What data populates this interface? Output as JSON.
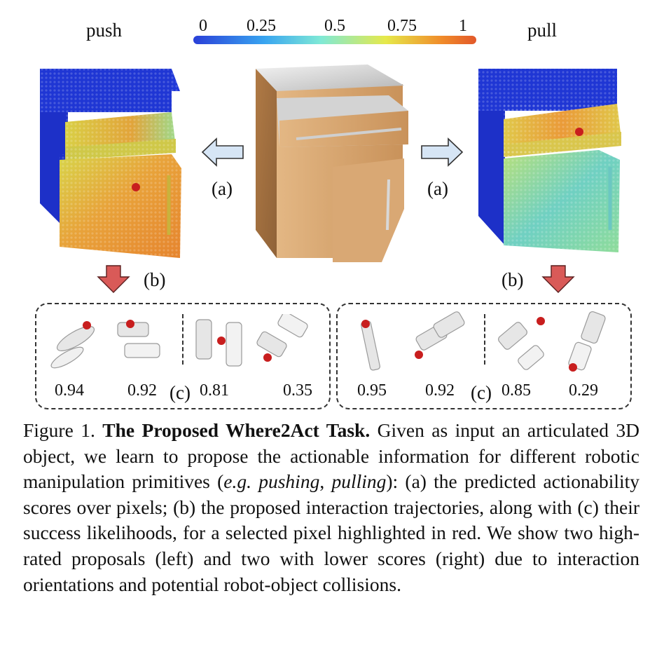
{
  "figure": {
    "panels": {
      "left_title": "push",
      "right_title": "pull"
    },
    "colorbar": {
      "ticks": [
        "0",
        "0.25",
        "0.5",
        "0.75",
        "1"
      ],
      "colors": [
        "#2a3fd8",
        "#38a4f0",
        "#7fe9d6",
        "#e6e94a",
        "#f08a2a",
        "#e2582a"
      ]
    },
    "labels": {
      "a_left": "(a)",
      "a_right": "(a)",
      "b_left": "(b)",
      "b_right": "(b)",
      "c_left": "(c)",
      "c_right": "(c)"
    },
    "left_scores": [
      "0.94",
      "0.92",
      "0.81",
      "0.35"
    ],
    "right_scores": [
      "0.95",
      "0.92",
      "0.85",
      "0.29"
    ],
    "colors": {
      "heat_blue": "#1d33d6",
      "heat_orange": "#e8862f",
      "heat_yellow": "#d8d74a",
      "arrow_light": "#cfe0f2",
      "arrow_red": "#d95a58",
      "contact_point": "#c81e1e",
      "wood": "#c9925a"
    }
  },
  "caption": {
    "prefix": "Figure 1. ",
    "title": "The Proposed Where2Act Task.",
    "text1": " Given as input an articulated 3D object, we learn to propose the actionable information for different robotic manipulation primitives (",
    "eg": "e.g.",
    "space": " ",
    "pushing": "pushing",
    "comma": ", ",
    "pulling": "pulling",
    "text2": "): (a) the predicted actionability scores over pixels; (b) the proposed interaction trajectories, along with (c) their success likelihoods, for a selected pixel highlighted in red.  We show two high-rated proposals (left) and two with lower scores (right) due to interaction orientations and potential robot-object collisions."
  }
}
